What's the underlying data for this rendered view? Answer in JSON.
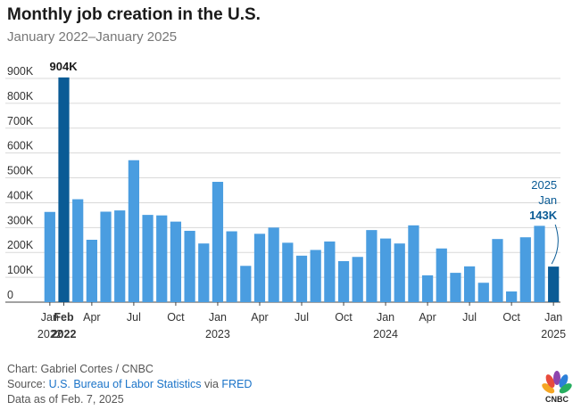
{
  "header": {
    "title": "Monthly job creation in the U.S.",
    "subtitle": "January 2022–January 2025"
  },
  "chart_data": {
    "type": "bar",
    "title": "Monthly job creation in the U.S.",
    "subtitle": "January 2022–January 2025",
    "xlabel": "",
    "ylabel": "",
    "ylim": [
      0,
      900000
    ],
    "y_ticks": [
      "0",
      "100K",
      "200K",
      "300K",
      "400K",
      "500K",
      "600K",
      "700K",
      "800K",
      "900K"
    ],
    "grid": true,
    "colors": {
      "default": "#4a9de0",
      "highlight": "#0a5b95"
    },
    "categories": [
      "2022-01",
      "2022-02",
      "2022-03",
      "2022-04",
      "2022-05",
      "2022-06",
      "2022-07",
      "2022-08",
      "2022-09",
      "2022-10",
      "2022-11",
      "2022-12",
      "2023-01",
      "2023-02",
      "2023-03",
      "2023-04",
      "2023-05",
      "2023-06",
      "2023-07",
      "2023-08",
      "2023-09",
      "2023-10",
      "2023-11",
      "2023-12",
      "2024-01",
      "2024-02",
      "2024-03",
      "2024-04",
      "2024-05",
      "2024-06",
      "2024-07",
      "2024-08",
      "2024-09",
      "2024-10",
      "2024-11",
      "2024-12",
      "2025-01"
    ],
    "values": [
      363000,
      904000,
      414000,
      251000,
      364000,
      369000,
      571000,
      351000,
      349000,
      324000,
      287000,
      236000,
      484000,
      285000,
      146000,
      275000,
      300000,
      239000,
      187000,
      210000,
      244000,
      165000,
      182000,
      290000,
      256000,
      236000,
      309000,
      108000,
      216000,
      118000,
      144000,
      78000,
      254000,
      43000,
      261000,
      307000,
      143000
    ],
    "highlighted": [
      1,
      36
    ],
    "x_tick_labels": [
      {
        "index": 0,
        "month": "Jan",
        "year": "2022",
        "bold": false
      },
      {
        "index": 1,
        "month": "Feb",
        "year": "2022",
        "bold": true
      },
      {
        "index": 3,
        "month": "Apr",
        "year": "",
        "bold": false
      },
      {
        "index": 6,
        "month": "Jul",
        "year": "",
        "bold": false
      },
      {
        "index": 9,
        "month": "Oct",
        "year": "",
        "bold": false
      },
      {
        "index": 12,
        "month": "Jan",
        "year": "2023",
        "bold": false
      },
      {
        "index": 15,
        "month": "Apr",
        "year": "",
        "bold": false
      },
      {
        "index": 18,
        "month": "Jul",
        "year": "",
        "bold": false
      },
      {
        "index": 21,
        "month": "Oct",
        "year": "",
        "bold": false
      },
      {
        "index": 24,
        "month": "Jan",
        "year": "2024",
        "bold": false
      },
      {
        "index": 27,
        "month": "Apr",
        "year": "",
        "bold": false
      },
      {
        "index": 30,
        "month": "Jul",
        "year": "",
        "bold": false
      },
      {
        "index": 33,
        "month": "Oct",
        "year": "",
        "bold": false
      },
      {
        "index": 36,
        "month": "Jan",
        "year": "2025",
        "bold": false
      }
    ],
    "annotations": [
      {
        "index": 1,
        "lines": [
          "904K"
        ]
      },
      {
        "index": 36,
        "lines": [
          "2025",
          "Jan",
          "143K"
        ]
      }
    ]
  },
  "footer": {
    "credit": "Chart: Gabriel Cortes / CNBC",
    "source_prefix": "Source: ",
    "source_link": "U.S. Bureau of Labor Statistics",
    "source_via": " via ",
    "source_fred": "FRED",
    "asof": "Data as of Feb. 7, 2025"
  },
  "logo": {
    "text": "CNBC"
  }
}
